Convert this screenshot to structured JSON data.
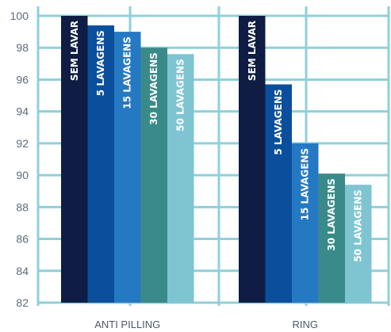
{
  "chart_data": {
    "type": "bar",
    "title": "",
    "xlabel": "",
    "ylabel": "",
    "ylim": [
      82,
      100
    ],
    "yticks": [
      82,
      84,
      86,
      88,
      90,
      92,
      94,
      96,
      98,
      100
    ],
    "categories": [
      "ANTI PILLING",
      "RING"
    ],
    "series": [
      {
        "name": "SEM LAVAR",
        "color": "#0f1d44",
        "values": [
          100,
          100
        ]
      },
      {
        "name": "5 LAVAGENS",
        "color": "#0b4f9c",
        "values": [
          99.4,
          95.7
        ]
      },
      {
        "name": "15 LAVAGENS",
        "color": "#2579c3",
        "values": [
          99.0,
          92.0
        ]
      },
      {
        "name": "30 LAVAGENS",
        "color": "#3a8a8a",
        "values": [
          98.0,
          90.1
        ]
      },
      {
        "name": "50 LAVAGENS",
        "color": "#7ec5d1",
        "values": [
          97.6,
          89.4
        ]
      }
    ],
    "grid": true,
    "legend": "none",
    "grid_color": "#8fd0da"
  }
}
